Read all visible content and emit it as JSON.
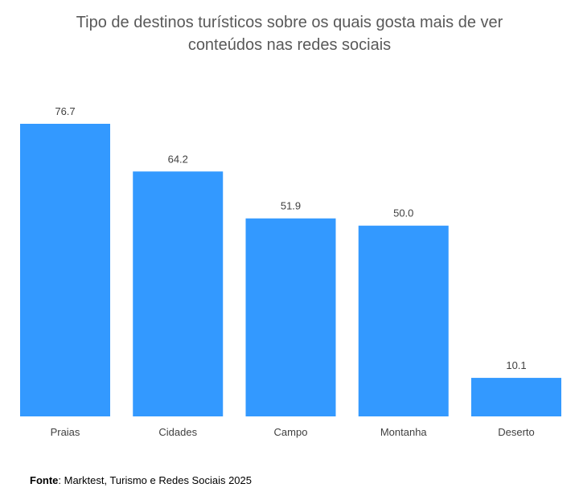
{
  "chart_data": {
    "type": "bar",
    "title_lines": [
      "Tipo de destinos turísticos sobre os quais gosta mais de ver",
      "conteúdos nas redes sociais"
    ],
    "categories": [
      "Praias",
      "Cidades",
      "Campo",
      "Montanha",
      "Deserto"
    ],
    "values": [
      76.7,
      64.2,
      51.9,
      50.0,
      10.1
    ],
    "value_labels": [
      "76.7",
      "64.2",
      "51.9",
      "50.0",
      "10.1"
    ],
    "xlabel": "",
    "ylabel": "",
    "ylim": [
      0,
      80
    ],
    "grid": false,
    "legend": "none",
    "bar_color": "#3399FF"
  },
  "source": {
    "label": "Fonte",
    "text": ": Marktest, Turismo e Redes Sociais 2025"
  }
}
